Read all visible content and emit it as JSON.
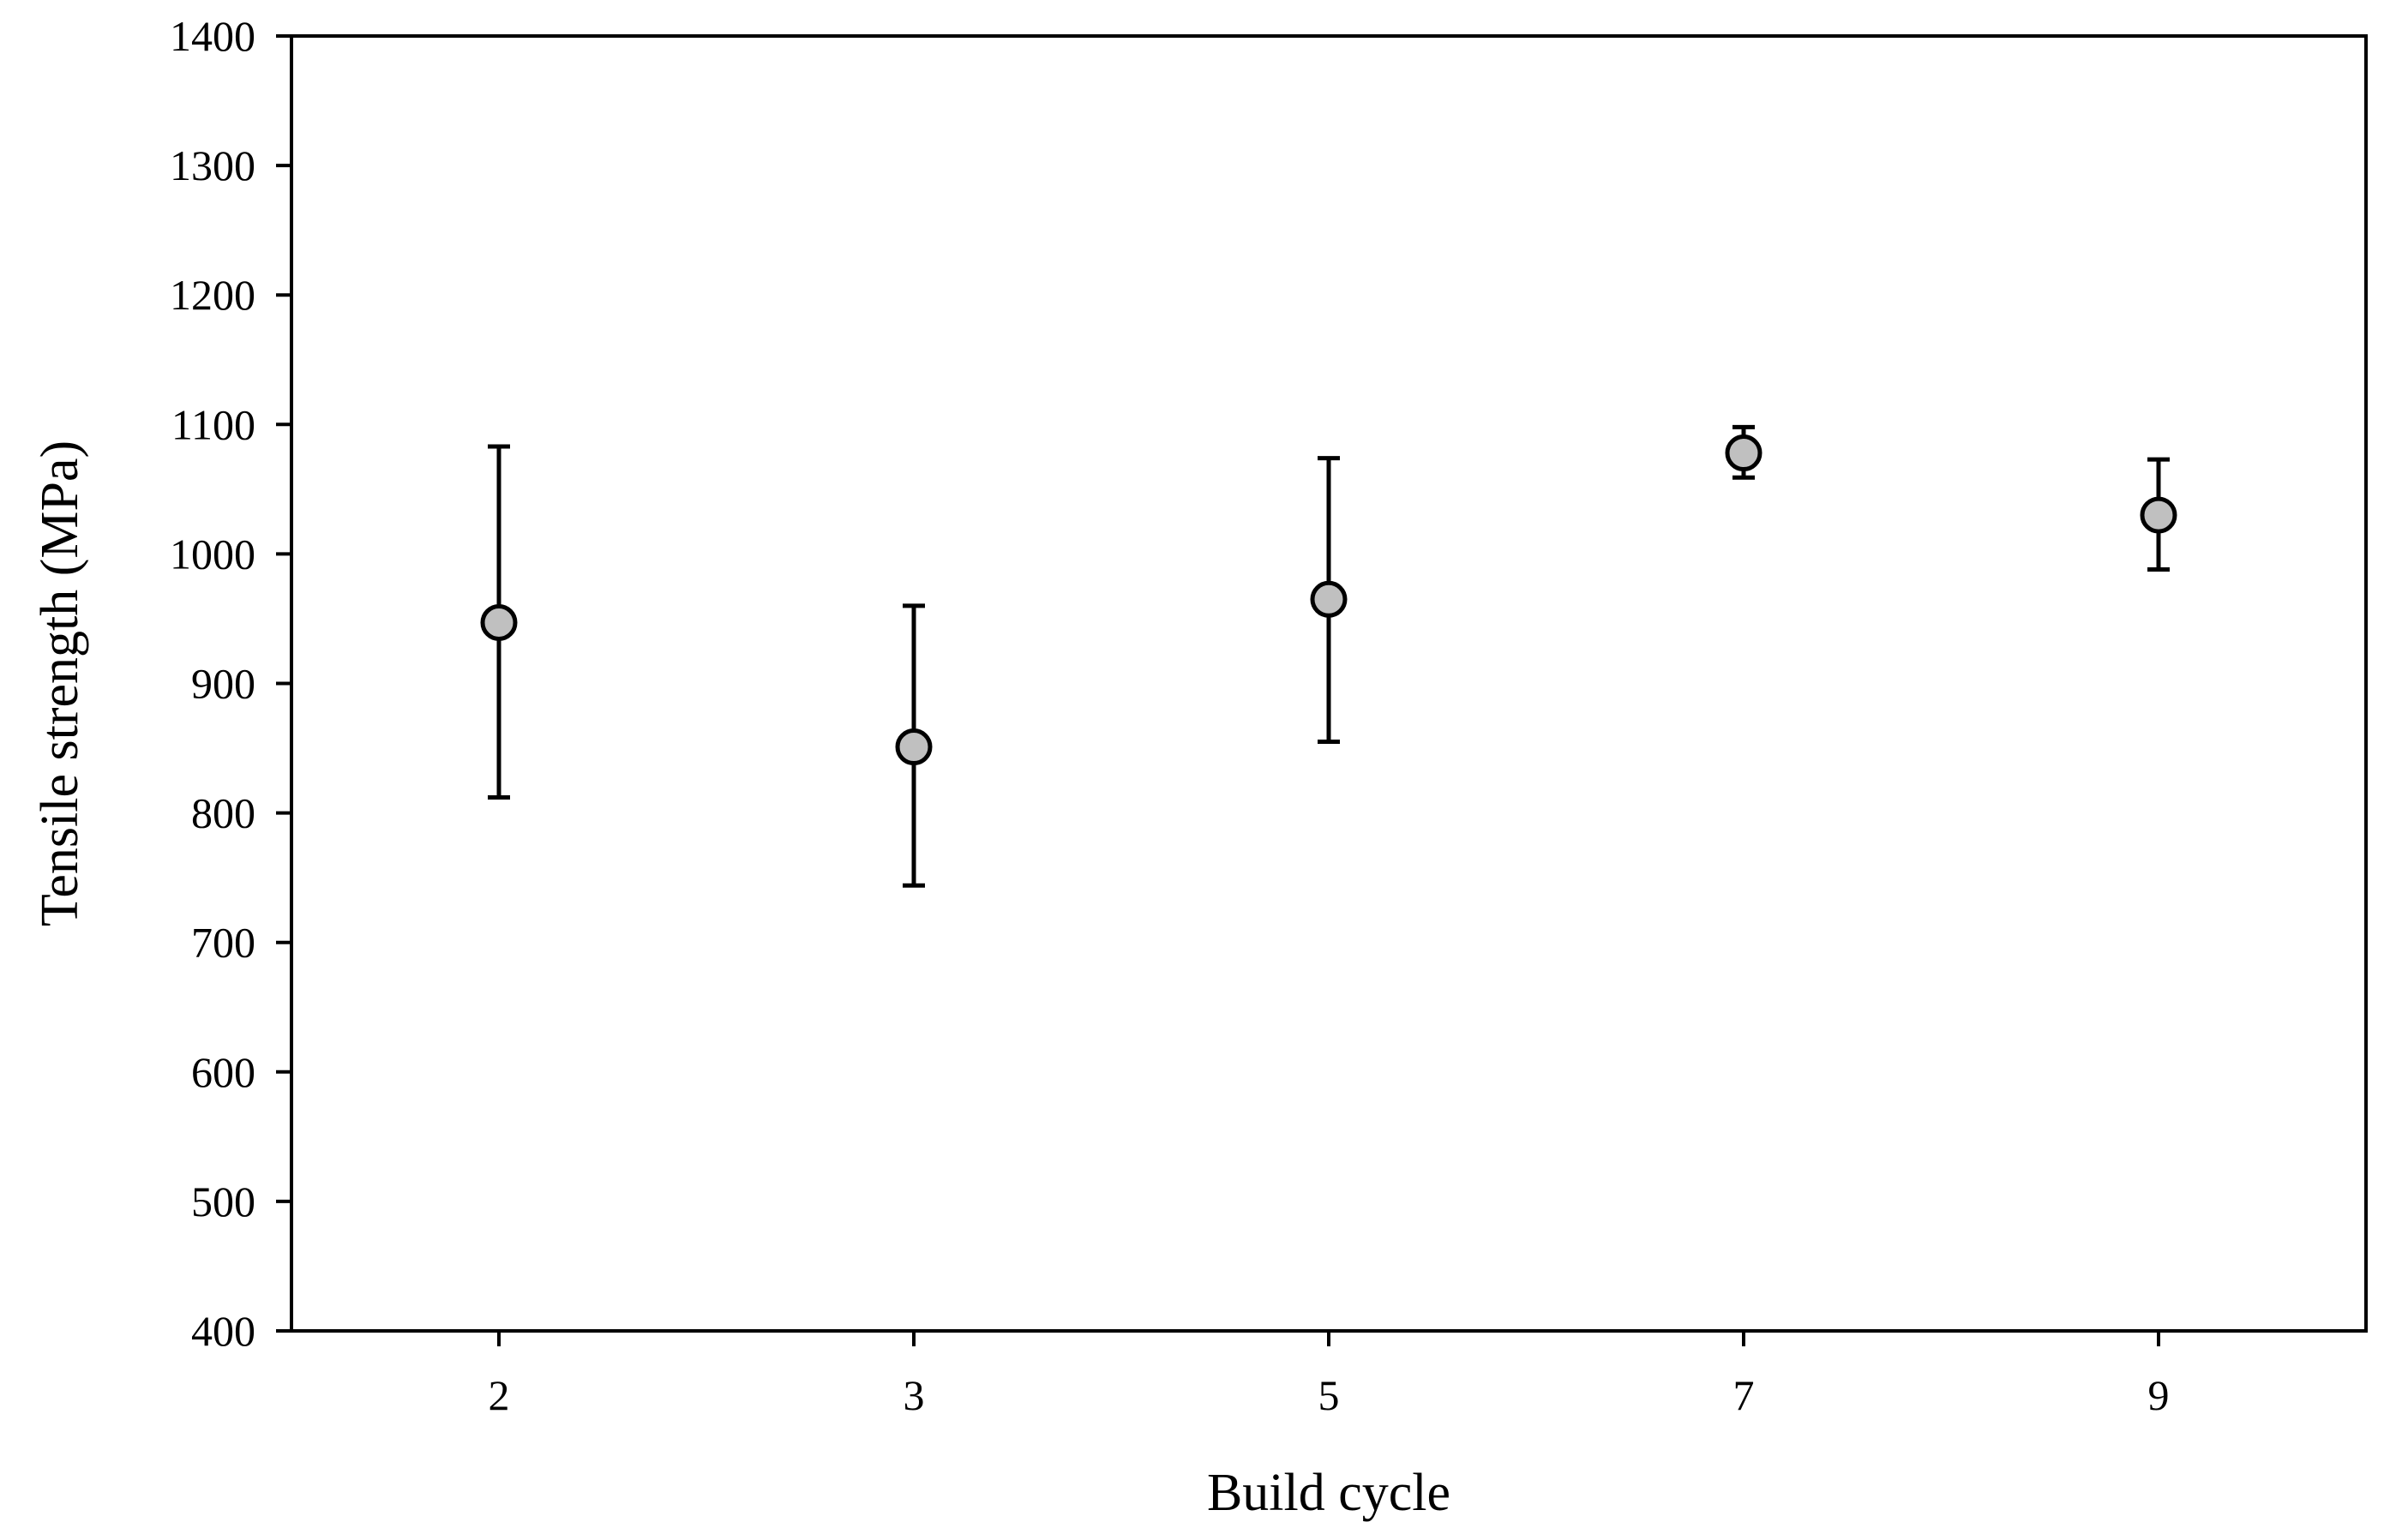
{
  "chart_data": {
    "type": "scatter",
    "title": "",
    "xlabel": "Build cycle",
    "ylabel": "Tensile strength (MPa)",
    "categories": [
      "2",
      "3",
      "5",
      "7",
      "9"
    ],
    "ylim": [
      400,
      1400
    ],
    "yticks": [
      400,
      500,
      600,
      700,
      800,
      900,
      1000,
      1100,
      1200,
      1300,
      1400
    ],
    "grid": false,
    "legend": "none",
    "series": [
      {
        "values": [
          947,
          851,
          965,
          1078,
          1030
        ],
        "error_low": [
          812,
          744,
          855,
          1059,
          988
        ],
        "error_high": [
          1083,
          960,
          1074,
          1098,
          1073
        ]
      }
    ],
    "marker_fill": "#c0c0c0",
    "marker_stroke": "#000000"
  }
}
